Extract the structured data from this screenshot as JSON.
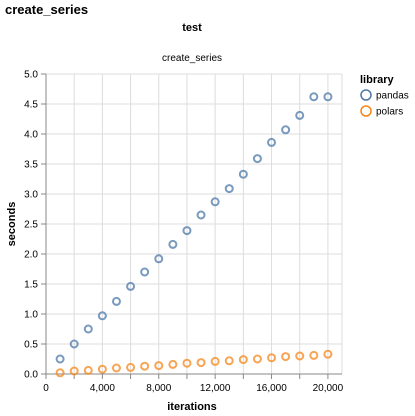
{
  "page_title": "create_series",
  "chart_data": {
    "type": "scatter",
    "title": "test",
    "subtitle": "create_series",
    "xlabel": "iterations",
    "ylabel": "seconds",
    "xlim": [
      0,
      21000
    ],
    "ylim": [
      0,
      5
    ],
    "x_ticks": [
      0,
      4000,
      8000,
      12000,
      16000,
      20000
    ],
    "x_tick_labels": [
      "0",
      "4,000",
      "8,000",
      "12,000",
      "16,000",
      "20,000"
    ],
    "y_ticks": [
      0,
      0.5,
      1,
      1.5,
      2,
      2.5,
      3,
      3.5,
      4,
      4.5,
      5
    ],
    "y_tick_labels": [
      "0.0",
      "0.5",
      "1.0",
      "1.5",
      "2.0",
      "2.5",
      "3.0",
      "3.5",
      "4.0",
      "4.5",
      "5.0"
    ],
    "x_grid_values": [
      0,
      2000,
      4000,
      6000,
      8000,
      10000,
      12000,
      14000,
      16000,
      18000,
      20000
    ],
    "grid": true,
    "legend": {
      "title": "library",
      "placement": "right"
    },
    "series": [
      {
        "name": "pandas",
        "color": "#4c78a8",
        "x": [
          1000,
          2000,
          3000,
          4000,
          5000,
          6000,
          7000,
          8000,
          9000,
          10000,
          11000,
          12000,
          13000,
          14000,
          15000,
          16000,
          17000,
          18000,
          19000,
          20000
        ],
        "y": [
          0.25,
          0.5,
          0.75,
          0.97,
          1.21,
          1.46,
          1.7,
          1.92,
          2.16,
          2.39,
          2.65,
          2.87,
          3.09,
          3.33,
          3.59,
          3.86,
          4.07,
          4.31,
          4.62,
          4.62
        ]
      },
      {
        "name": "polars",
        "color": "#f58518",
        "x": [
          1000,
          2000,
          3000,
          4000,
          5000,
          6000,
          7000,
          8000,
          9000,
          10000,
          11000,
          12000,
          13000,
          14000,
          15000,
          16000,
          17000,
          18000,
          19000,
          20000
        ],
        "y": [
          0.02,
          0.05,
          0.06,
          0.08,
          0.1,
          0.11,
          0.13,
          0.14,
          0.16,
          0.18,
          0.19,
          0.21,
          0.22,
          0.24,
          0.25,
          0.27,
          0.29,
          0.3,
          0.31,
          0.33
        ]
      }
    ]
  }
}
